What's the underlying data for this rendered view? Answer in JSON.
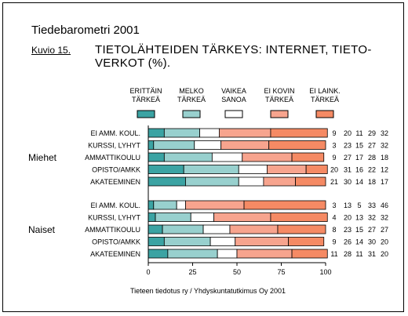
{
  "chart_data": {
    "type": "bar",
    "stacked": "100%",
    "orientation": "horizontal",
    "title": "Tiedebarometri 2001",
    "figure_label": "Kuvio 15.",
    "subtitle_lines": [
      "TIETOLÄHTEIDEN TÄRKEYS: INTERNET, TIETO-",
      "VERKOT (%)."
    ],
    "source": "Tieteen tiedotus ry / Yhdyskuntatutkimus Oy 2001",
    "legend_position": "top",
    "legend": [
      {
        "lines": [
          "ERITTÄIN",
          "TÄRKEÄ"
        ],
        "color": "#3ba3a3"
      },
      {
        "lines": [
          "MELKO",
          "TÄRKEÄ"
        ],
        "color": "#98d0ce"
      },
      {
        "lines": [
          "VAIKEA",
          "SANOA"
        ],
        "color": "#ffffff"
      },
      {
        "lines": [
          "EI KOVIN",
          "TÄRKEÄ"
        ],
        "color": "#f7a48e"
      },
      {
        "lines": [
          "EI LAINK.",
          "TÄRKEÄ"
        ],
        "color": "#f58a64"
      }
    ],
    "xlim": [
      0,
      100
    ],
    "xticks": [
      "0",
      "25",
      "50",
      "75",
      "100"
    ],
    "groups": [
      {
        "name": "Miehet",
        "rows": [
          {
            "label": "EI AMM. KOUL.",
            "values": [
              9,
              20,
              11,
              29,
              32
            ]
          },
          {
            "label": "KURSSI, LYHYT",
            "values": [
              3,
              23,
              15,
              27,
              32
            ]
          },
          {
            "label": "AMMATTIKOULU",
            "values": [
              9,
              27,
              17,
              28,
              18
            ]
          },
          {
            "label": "OPISTO/AMKK",
            "values": [
              20,
              31,
              16,
              22,
              12
            ]
          },
          {
            "label": "AKATEEMINEN",
            "values": [
              21,
              30,
              14,
              18,
              17
            ]
          }
        ]
      },
      {
        "name": "Naiset",
        "rows": [
          {
            "label": "EI AMM. KOUL.",
            "values": [
              3,
              13,
              5,
              33,
              46
            ]
          },
          {
            "label": "KURSSI, LYHYT",
            "values": [
              4,
              20,
              13,
              32,
              32
            ]
          },
          {
            "label": "AMMATTIKOULU",
            "values": [
              8,
              23,
              15,
              27,
              27
            ]
          },
          {
            "label": "OPISTO/AMKK",
            "values": [
              9,
              26,
              14,
              30,
              20
            ]
          },
          {
            "label": "AKATEEMINEN",
            "values": [
              11,
              28,
              11,
              31,
              20
            ]
          }
        ]
      }
    ]
  }
}
